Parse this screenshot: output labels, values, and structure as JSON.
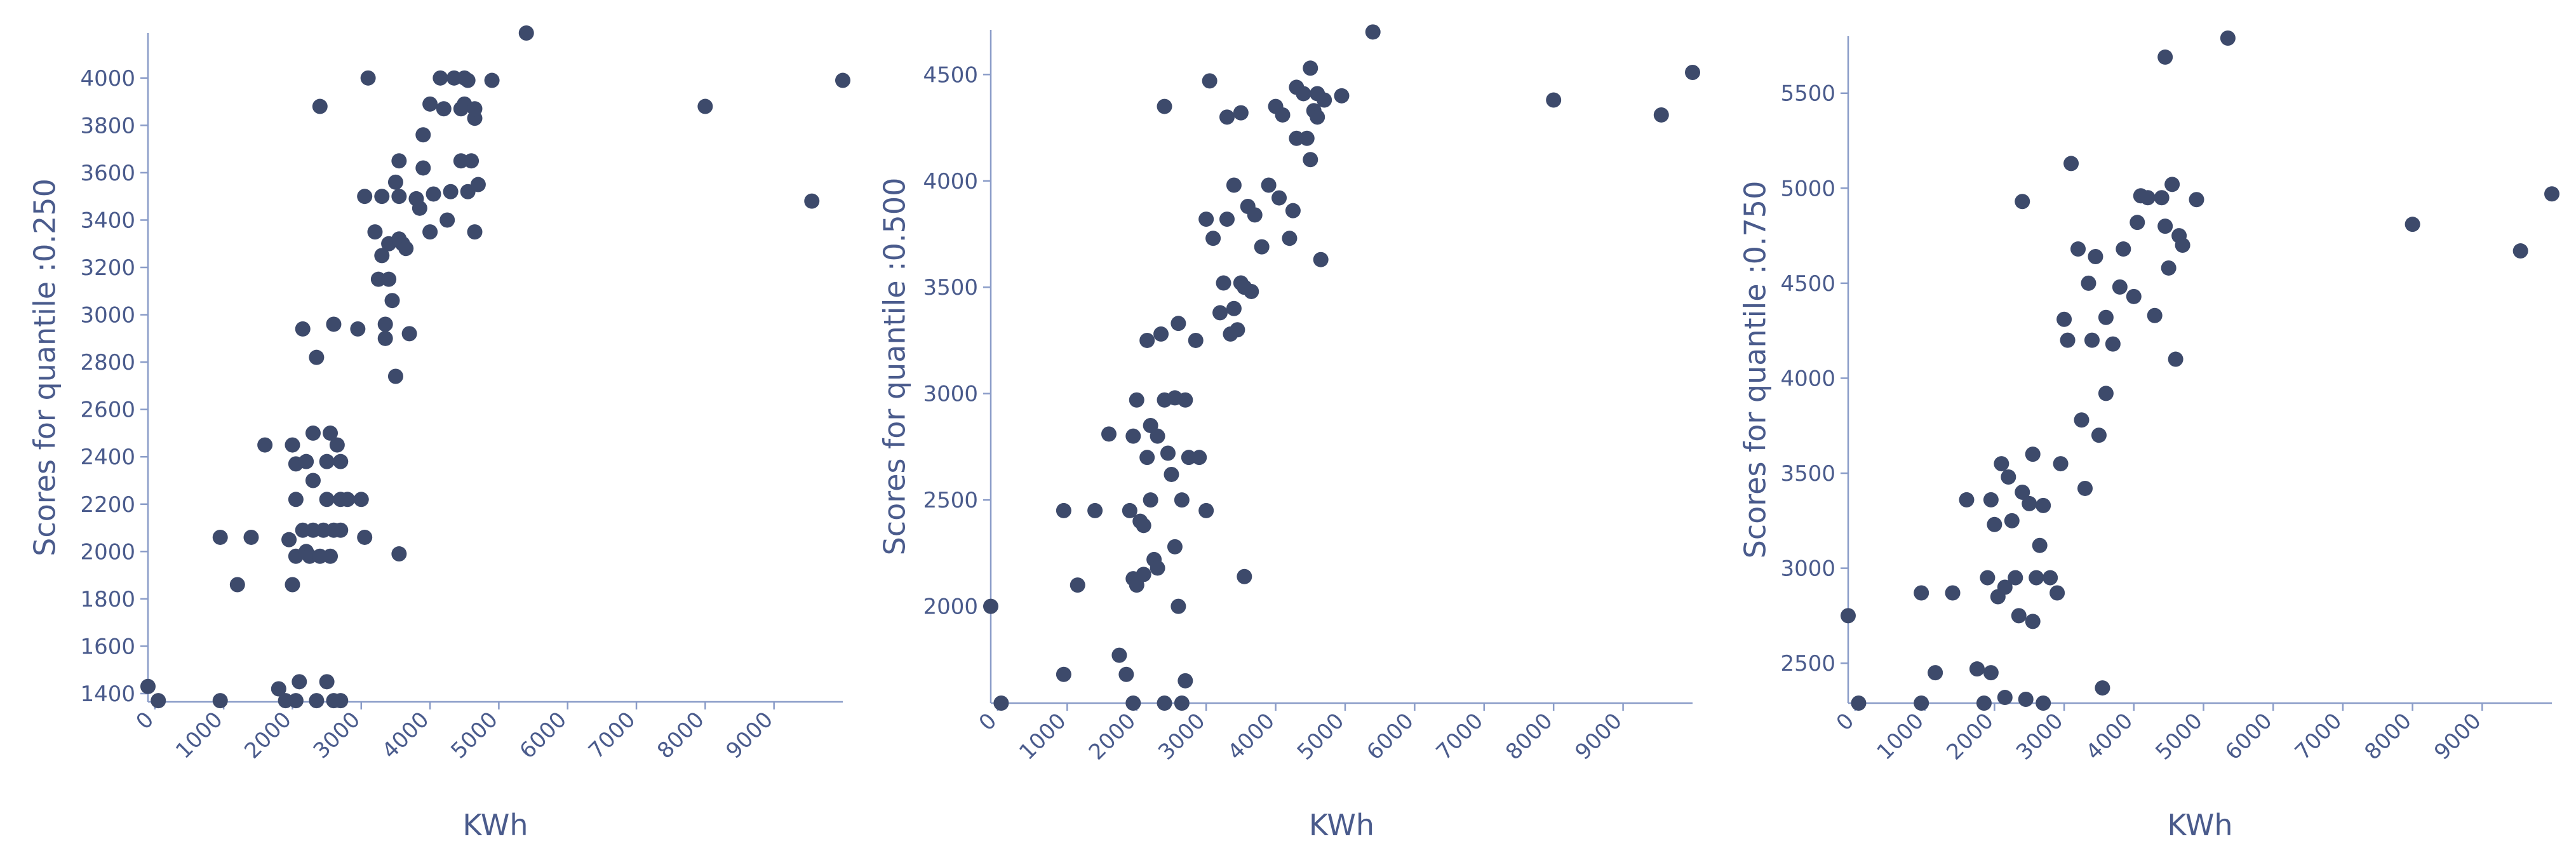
{
  "chart_data": [
    {
      "type": "scatter",
      "x_label": "KWh",
      "y_label": "Scores for quantile :0.250",
      "color": "#3d4a6b",
      "xlim": [
        -100,
        10000
      ],
      "ylim": [
        1365,
        4190
      ],
      "xticks": [
        0,
        1000,
        2000,
        3000,
        4000,
        5000,
        6000,
        7000,
        8000,
        9000
      ],
      "yticks": [
        1400,
        1600,
        1800,
        2000,
        2200,
        2400,
        2600,
        2800,
        3000,
        3200,
        3400,
        3600,
        3800,
        4000
      ],
      "x": [
        -100,
        50,
        950,
        950,
        1200,
        1400,
        1600,
        1800,
        1900,
        1950,
        2000,
        2000,
        2050,
        2050,
        2050,
        2050,
        2100,
        2150,
        2150,
        2200,
        2200,
        2250,
        2300,
        2300,
        2300,
        2350,
        2350,
        2400,
        2400,
        2450,
        2500,
        2500,
        2500,
        2550,
        2550,
        2600,
        2600,
        2600,
        2650,
        2700,
        2700,
        2700,
        2700,
        2800,
        2950,
        3000,
        3050,
        3050,
        3100,
        3200,
        3250,
        3300,
        3300,
        3350,
        3350,
        3400,
        3400,
        3450,
        3500,
        3500,
        3550,
        3550,
        3550,
        3600,
        3650,
        3700,
        3800,
        3850,
        3900,
        3900,
        4000,
        4000,
        4050,
        4150,
        4200,
        4250,
        4300,
        4350,
        4450,
        4450,
        4500,
        4500,
        4550,
        4550,
        4600,
        4650,
        4650,
        4650,
        4700,
        4900,
        5400,
        8000,
        9550,
        10000,
        3550
      ],
      "y": [
        1430,
        1370,
        1370,
        2060,
        1860,
        2060,
        2450,
        1420,
        1370,
        2050,
        2450,
        1860,
        1980,
        2220,
        2370,
        1370,
        1450,
        2090,
        2940,
        2000,
        2380,
        1980,
        2500,
        2090,
        2300,
        1370,
        2820,
        3880,
        1980,
        2090,
        2220,
        2380,
        1450,
        1980,
        2500,
        2090,
        2960,
        1370,
        2450,
        2220,
        2380,
        2090,
        1370,
        2220,
        2940,
        2220,
        2060,
        3500,
        4000,
        3350,
        3150,
        3250,
        3500,
        2960,
        2900,
        3150,
        3300,
        3060,
        2740,
        3560,
        3320,
        3650,
        3500,
        3300,
        3280,
        2920,
        3490,
        3450,
        3620,
        3760,
        3890,
        3350,
        3510,
        4000,
        3870,
        3400,
        3520,
        4000,
        3870,
        3650,
        4000,
        3890,
        3520,
        3990,
        3650,
        3830,
        3870,
        3350,
        3550,
        3990,
        4190,
        3880,
        3480,
        3990,
        1990
      ]
    },
    {
      "type": "scatter",
      "x_label": "KWh",
      "y_label": "Scores for quantile :0.500",
      "color": "#3d4a6b",
      "xlim": [
        -100,
        10000
      ],
      "ylim": [
        1545,
        4710
      ],
      "xticks": [
        0,
        1000,
        2000,
        3000,
        4000,
        5000,
        6000,
        7000,
        8000,
        9000
      ],
      "yticks": [
        2000,
        2500,
        3000,
        3500,
        4000,
        4500
      ],
      "x": [
        -100,
        50,
        950,
        950,
        1150,
        1400,
        1600,
        1750,
        1850,
        1900,
        1950,
        1950,
        1950,
        2000,
        2000,
        2050,
        2100,
        2100,
        2150,
        2150,
        2200,
        2200,
        2250,
        2300,
        2300,
        2350,
        2400,
        2400,
        2450,
        2500,
        2550,
        2550,
        2600,
        2600,
        2650,
        2700,
        2700,
        2750,
        2850,
        2900,
        3000,
        3000,
        3050,
        3100,
        3200,
        3250,
        3300,
        3300,
        3350,
        3400,
        3400,
        3450,
        3500,
        3500,
        3550,
        3550,
        3600,
        3650,
        3700,
        3800,
        3900,
        4000,
        4050,
        4100,
        4200,
        4250,
        4300,
        4300,
        4400,
        4450,
        4500,
        4500,
        4550,
        4600,
        4600,
        4650,
        4700,
        4950,
        5400,
        8000,
        9550,
        10000,
        2400,
        2650
      ],
      "y": [
        2000,
        1545,
        1680,
        2450,
        2100,
        2450,
        2810,
        1770,
        1680,
        2450,
        2130,
        1545,
        2800,
        2100,
        2970,
        2400,
        2150,
        2380,
        2700,
        3250,
        2500,
        2850,
        2220,
        2180,
        2800,
        3280,
        4350,
        2970,
        2720,
        2620,
        2980,
        2280,
        2000,
        3330,
        2500,
        2970,
        1650,
        2700,
        3250,
        2700,
        2450,
        3820,
        4470,
        3730,
        3380,
        3520,
        3820,
        4300,
        3280,
        3980,
        3400,
        3300,
        4320,
        3520,
        2140,
        3500,
        3880,
        3480,
        3840,
        3690,
        3980,
        4350,
        3920,
        4310,
        3730,
        3860,
        4200,
        4440,
        4410,
        4200,
        4530,
        4100,
        4330,
        4410,
        4300,
        3630,
        4380,
        4400,
        4700,
        4380,
        4310,
        4510,
        1545,
        1545
      ]
    },
    {
      "type": "scatter",
      "x_label": "KWh",
      "y_label": "Scores for quantile :0.750",
      "color": "#3d4a6b",
      "xlim": [
        -100,
        10000
      ],
      "ylim": [
        2290,
        5800
      ],
      "xticks": [
        0,
        1000,
        2000,
        3000,
        4000,
        5000,
        6000,
        7000,
        8000,
        9000
      ],
      "yticks": [
        2500,
        3000,
        3500,
        4000,
        4500,
        5000,
        5500
      ],
      "x": [
        -100,
        50,
        950,
        950,
        1150,
        1400,
        1600,
        1750,
        1850,
        1900,
        1950,
        1950,
        2000,
        2050,
        2100,
        2150,
        2150,
        2200,
        2250,
        2300,
        2350,
        2400,
        2400,
        2450,
        2500,
        2550,
        2550,
        2600,
        2650,
        2700,
        2700,
        2800,
        2900,
        2950,
        3000,
        3050,
        3100,
        3200,
        3250,
        3300,
        3350,
        3400,
        3450,
        3500,
        3550,
        3600,
        3600,
        3700,
        3800,
        3850,
        4000,
        4050,
        4100,
        4200,
        4300,
        4400,
        4450,
        4450,
        4500,
        4550,
        4600,
        4650,
        4700,
        4900,
        5350,
        8000,
        9550,
        10000
      ],
      "y": [
        2750,
        2290,
        2290,
        2870,
        2450,
        2870,
        3360,
        2470,
        2290,
        2950,
        3360,
        2450,
        3230,
        2850,
        3550,
        2900,
        2320,
        3480,
        3250,
        2950,
        2750,
        4930,
        3400,
        2310,
        3340,
        3600,
        2720,
        2950,
        3120,
        3330,
        2290,
        2950,
        2870,
        3550,
        4310,
        4200,
        5130,
        4680,
        3780,
        3420,
        4500,
        4200,
        4640,
        3700,
        2370,
        3920,
        4320,
        4180,
        4480,
        4680,
        4430,
        4820,
        4960,
        4950,
        4330,
        4950,
        5690,
        4800,
        4580,
        5020,
        4100,
        4750,
        4700,
        4940,
        5790,
        4810,
        4670,
        4970
      ]
    }
  ]
}
